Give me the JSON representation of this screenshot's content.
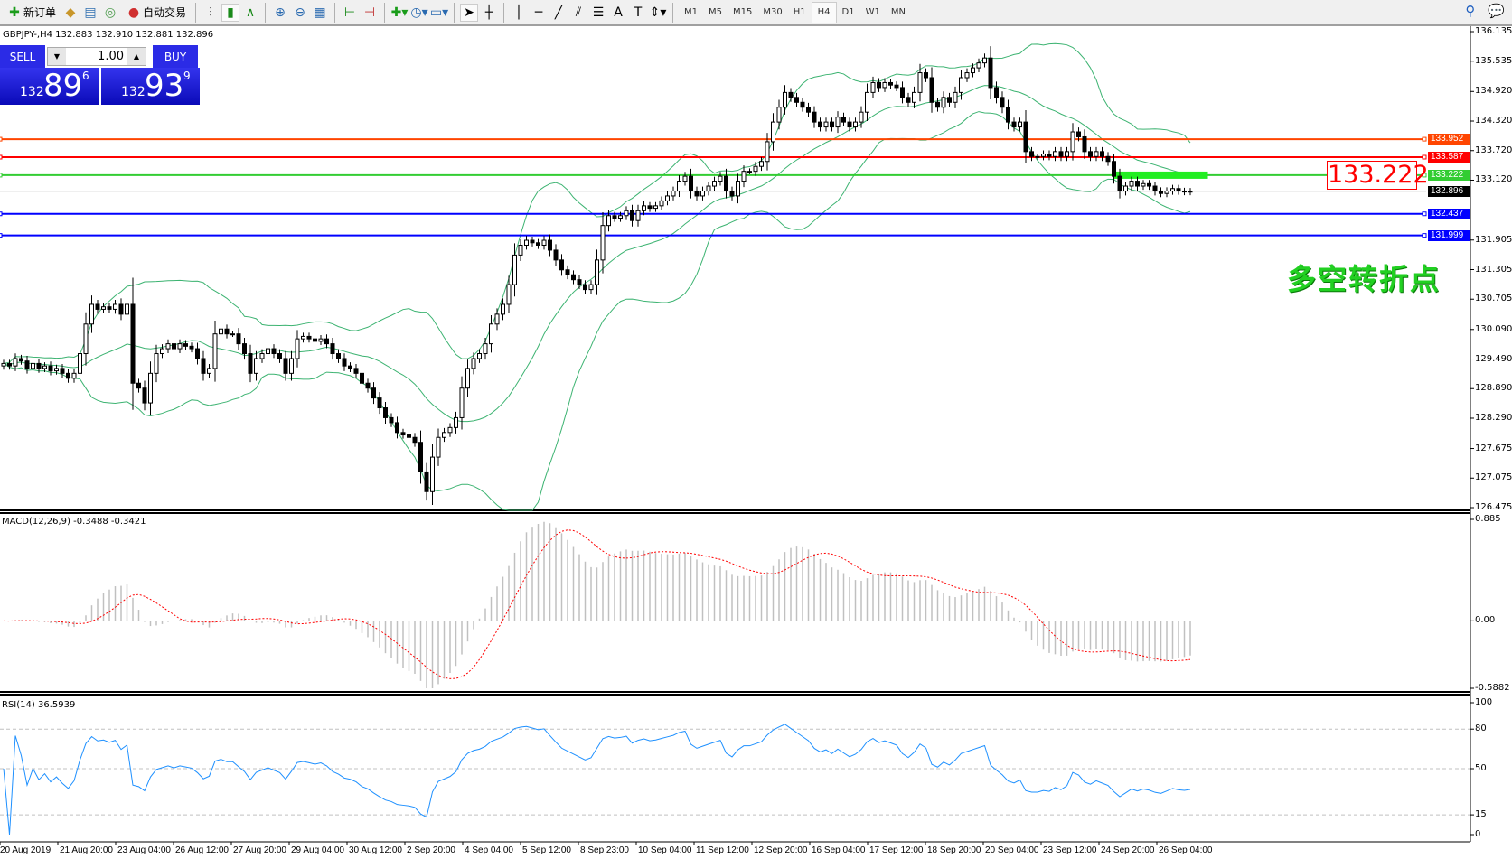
{
  "toolbar": {
    "new_order": "新订单",
    "auto_trading": "自动交易",
    "timeframes": [
      "M1",
      "M5",
      "M15",
      "M30",
      "H1",
      "H4",
      "D1",
      "W1",
      "MN"
    ],
    "active_timeframe": "H4",
    "icons": [
      "new-order-icon",
      "market-watch-icon",
      "data-window-icon",
      "navigator-icon",
      "auto-trading-icon",
      "bar-chart-icon",
      "candlestick-icon",
      "line-chart-icon",
      "zoom-in-icon",
      "zoom-out-icon",
      "tile-windows-icon",
      "chart-shift-icon",
      "autoscroll-icon",
      "indicators-icon",
      "periods-icon",
      "templates-icon",
      "cursor-icon",
      "crosshair-icon",
      "vertical-line-icon",
      "horizontal-line-icon",
      "trendline-icon",
      "equidistant-channel-icon",
      "fibonacci-icon",
      "text-icon",
      "text-label-icon",
      "arrows-icon",
      "search-icon",
      "chat-icon"
    ]
  },
  "symbol_info": "GBPJPY-,H4  132.883 132.910 132.881 132.896",
  "trade_panel": {
    "sell_label": "SELL",
    "buy_label": "BUY",
    "lot": "1.00",
    "sell": {
      "prefix": "132",
      "big": "89",
      "sup": "6"
    },
    "buy": {
      "prefix": "132",
      "big": "93",
      "sup": "9"
    },
    "color": "#2b2be6"
  },
  "annotation": {
    "level_label": "133.222",
    "text": "多空转折点",
    "text_color": "#22d022"
  },
  "chart_data": [
    {
      "type": "candlestick",
      "symbol": "GBPJPY-",
      "timeframe": "H4",
      "ylim": [
        126.475,
        136.135
      ],
      "y_ticks": [
        "136.135",
        "135.535",
        "134.920",
        "134.320",
        "133.720",
        "133.120",
        "131.905",
        "131.305",
        "130.705",
        "130.090",
        "129.490",
        "128.890",
        "128.290",
        "127.675",
        "127.075",
        "126.475"
      ],
      "x_ticks": [
        "20 Aug 2019",
        "21 Aug 20:00",
        "23 Aug 04:00",
        "26 Aug 12:00",
        "27 Aug 20:00",
        "29 Aug 04:00",
        "30 Aug 12:00",
        "2 Sep 20:00",
        "4 Sep 04:00",
        "5 Sep 12:00",
        "8 Sep 23:00",
        "10 Sep 04:00",
        "11 Sep 12:00",
        "12 Sep 20:00",
        "16 Sep 04:00",
        "17 Sep 12:00",
        "18 Sep 20:00",
        "20 Sep 04:00",
        "23 Sep 12:00",
        "24 Sep 20:00",
        "26 Sep 04:00"
      ],
      "current_price": {
        "value": "132.896",
        "color": "#000000"
      },
      "horizontal_lines": [
        {
          "value": "133.952",
          "color": "#ff4500"
        },
        {
          "value": "133.587",
          "color": "#ff0000"
        },
        {
          "value": "133.222",
          "color": "#32cd32"
        },
        {
          "value": "132.437",
          "color": "#0000ff"
        },
        {
          "value": "131.999",
          "color": "#0000ff"
        }
      ],
      "bollinger_color": "#3cb371",
      "closes": [
        129.4,
        129.35,
        129.5,
        129.45,
        129.3,
        129.4,
        129.3,
        129.35,
        129.25,
        129.3,
        129.2,
        129.1,
        129.2,
        129.6,
        130.2,
        130.6,
        130.5,
        130.55,
        130.5,
        130.6,
        130.4,
        130.6,
        129.0,
        128.9,
        128.6,
        129.2,
        129.6,
        129.7,
        129.8,
        129.7,
        129.8,
        129.75,
        129.7,
        129.5,
        129.2,
        129.3,
        130.0,
        130.1,
        130.0,
        130.0,
        129.8,
        129.6,
        129.2,
        129.5,
        129.6,
        129.7,
        129.6,
        129.5,
        129.2,
        129.5,
        129.9,
        129.95,
        129.9,
        129.85,
        129.9,
        129.8,
        129.6,
        129.5,
        129.35,
        129.3,
        129.2,
        129.0,
        128.9,
        128.7,
        128.5,
        128.3,
        128.2,
        128.0,
        127.95,
        127.9,
        127.8,
        127.2,
        126.8,
        127.5,
        127.9,
        128.0,
        128.1,
        128.3,
        128.9,
        129.3,
        129.5,
        129.6,
        129.8,
        130.2,
        130.4,
        130.6,
        131.0,
        131.6,
        131.8,
        131.9,
        131.85,
        131.8,
        131.9,
        131.7,
        131.5,
        131.3,
        131.2,
        131.1,
        131.0,
        130.9,
        131.0,
        131.5,
        132.2,
        132.4,
        132.35,
        132.4,
        132.5,
        132.3,
        132.5,
        132.6,
        132.55,
        132.6,
        132.7,
        132.8,
        132.9,
        133.1,
        133.2,
        132.9,
        132.8,
        132.9,
        133.0,
        133.1,
        133.2,
        132.9,
        132.8,
        133.1,
        133.3,
        133.3,
        133.4,
        133.5,
        133.9,
        134.3,
        134.6,
        134.9,
        134.8,
        134.7,
        134.6,
        134.5,
        134.3,
        134.2,
        134.3,
        134.2,
        134.4,
        134.3,
        134.2,
        134.3,
        134.5,
        134.9,
        135.1,
        135.0,
        135.1,
        135.05,
        135.0,
        134.8,
        134.7,
        134.9,
        135.3,
        135.2,
        134.7,
        134.6,
        134.8,
        134.7,
        134.9,
        135.2,
        135.3,
        135.4,
        135.5,
        135.6,
        135.0,
        134.8,
        134.6,
        134.3,
        134.2,
        134.3,
        133.7,
        133.6,
        133.6,
        133.65,
        133.6,
        133.7,
        133.6,
        133.7,
        134.1,
        134.0,
        133.7,
        133.6,
        133.7,
        133.6,
        133.5,
        133.2,
        132.9,
        133.0,
        133.1,
        133.0,
        133.05,
        133.0,
        132.9,
        132.85,
        132.9,
        132.95,
        132.9,
        132.88,
        132.896
      ]
    },
    {
      "type": "bar",
      "title": "MACD(12,26,9) -0.3488 -0.3421",
      "ylim": [
        -0.5882,
        0.885
      ],
      "y_ticks": [
        "0.885",
        "0.00",
        "-0.5882"
      ],
      "histogram_color": "#c0c0c0",
      "signal_color": "#ff0000"
    },
    {
      "type": "line",
      "title": "RSI(14) 36.5939",
      "ylim": [
        0,
        100
      ],
      "y_ticks": [
        "100",
        "80",
        "50",
        "15",
        "0"
      ],
      "levels": [
        80,
        50,
        15
      ],
      "color": "#1e90ff"
    }
  ]
}
